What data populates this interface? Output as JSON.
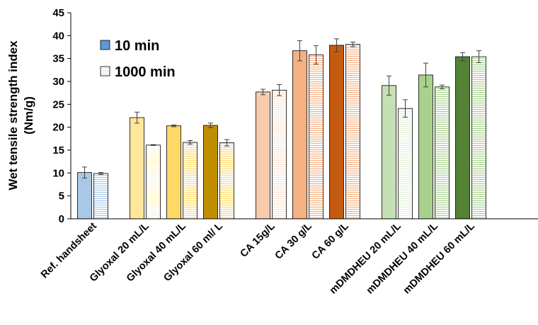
{
  "chart_data": {
    "type": "bar",
    "ylabel_lines": [
      "Wet tensile strength index",
      "(Nm/g)"
    ],
    "ylim": [
      0,
      45
    ],
    "yticks": [
      0,
      5,
      10,
      15,
      20,
      25,
      30,
      35,
      40,
      45
    ],
    "grid": false,
    "legend_position": "top-left",
    "legend": [
      {
        "name": "10 min",
        "style": "solid",
        "color": "#5b9bd5"
      },
      {
        "name": "1000 min",
        "style": "hatched",
        "color": "#ffffff"
      }
    ],
    "categories": [
      "Ref. handsheet",
      "Glyoxal 20 mL/L",
      "Glyoxal 40 mL/L",
      "Glyoxal 60 ml/ L",
      "CA 15g/L",
      "CA 30 g/L",
      "CA 60 g/L",
      "mDMDHEU 20 mL/L",
      "mDMDHEU 40 mL/L",
      "mDMDHEU 60 mL/L"
    ],
    "groups": [
      [
        0
      ],
      [
        1,
        2,
        3
      ],
      [
        4,
        5,
        6
      ],
      [
        7,
        8,
        9
      ]
    ],
    "series": [
      {
        "name": "10 min",
        "values": [
          10.1,
          22.1,
          20.3,
          20.4,
          27.7,
          36.7,
          37.9,
          29.1,
          31.4,
          35.4
        ],
        "errors": [
          1.2,
          1.2,
          0.2,
          0.5,
          0.6,
          2.2,
          1.4,
          2.1,
          2.6,
          0.9
        ]
      },
      {
        "name": "1000 min",
        "values": [
          9.9,
          16.1,
          16.7,
          16.6,
          28.1,
          35.8,
          38.1,
          24.1,
          28.8,
          35.4
        ],
        "errors": [
          0.2,
          0.1,
          0.4,
          0.7,
          1.2,
          2.0,
          0.5,
          1.9,
          0.4,
          1.3
        ]
      }
    ],
    "colors": {
      "solid": [
        "#a9c8e8",
        "#ffe699",
        "#ffd966",
        "#bf8f00",
        "#f8cbad",
        "#f4b183",
        "#c55a11",
        "#c5e0b4",
        "#a9d18e",
        "#548235"
      ],
      "hatch": [
        "#a9c8e8",
        "#fff2cc",
        "#ffd966",
        "#ffd966",
        "#fbe5d6",
        "#f4b183",
        "#f4b183",
        "#e2f0d9",
        "#a9d18e",
        "#a9d18e"
      ]
    }
  }
}
